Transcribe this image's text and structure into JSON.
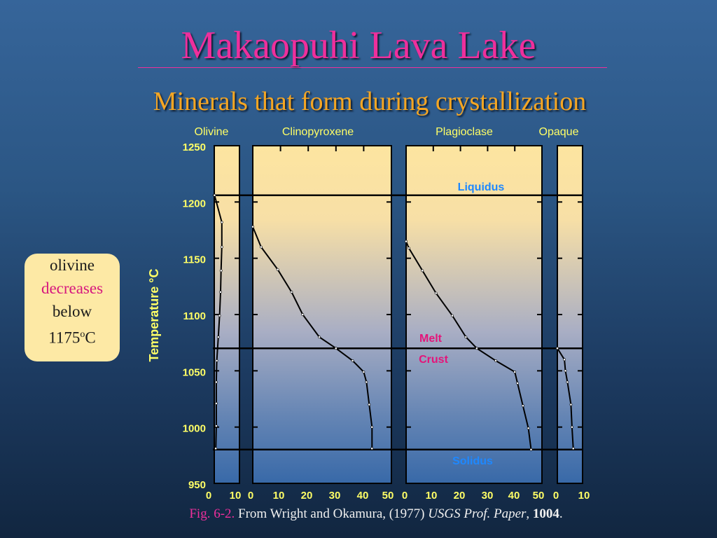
{
  "slide": {
    "title": "Makaopuhi Lava Lake",
    "subtitle": "Minerals that form during crystallization",
    "callout": {
      "line1": "olivine",
      "line2": "decreases",
      "line3": "below",
      "line4a": "1175",
      "line4b": "o",
      "line4c": "C"
    },
    "caption": {
      "fig": "Fig. 6-2.",
      "text": " From Wright and Okamura, (1977) ",
      "journal": "USGS Prof. Paper",
      "sep": ", ",
      "volume": "1004",
      "end": "."
    }
  },
  "colors": {
    "title": "#ee2f9c",
    "subtitle": "#f5a623",
    "panel_top": "#fde5a0",
    "panel_bottom": "#3869a8",
    "label_yellow": "#ffff66",
    "liquidus": "#1e88ff",
    "melt_crust": "#e4147a"
  },
  "chart_data": {
    "type": "line",
    "ylabel": "Temperature °C",
    "ylim": [
      950,
      1250
    ],
    "yticks": [
      1250,
      1200,
      1150,
      1100,
      1050,
      1000,
      950
    ],
    "horizontal_lines": [
      {
        "label": "Liquidus",
        "temp": 1206
      },
      {
        "label": "Melt Crust",
        "label1": "Melt",
        "label2": "Crust",
        "temp": 1070
      },
      {
        "label": "Solidus",
        "temp": 980
      }
    ],
    "panels": [
      {
        "name": "Olivine",
        "xlim": [
          0,
          10
        ],
        "xticks": [
          "0",
          "10"
        ],
        "points": [
          [
            0.1,
            1206
          ],
          [
            3.0,
            1182
          ],
          [
            3.0,
            1160
          ],
          [
            2.7,
            1139
          ],
          [
            2.5,
            1120
          ],
          [
            2.1,
            1099
          ],
          [
            1.6,
            1080
          ],
          [
            1.0,
            1059
          ],
          [
            0.8,
            1040
          ],
          [
            0.8,
            1021
          ],
          [
            0.8,
            1001
          ],
          [
            0.6,
            981
          ]
        ]
      },
      {
        "name": "Clinopyroxene",
        "xlim": [
          0,
          50
        ],
        "xticks": [
          "0",
          "10",
          "20",
          "30",
          "40",
          "50"
        ],
        "points": [
          [
            0,
            1178
          ],
          [
            3,
            1160
          ],
          [
            9,
            1140
          ],
          [
            14,
            1120
          ],
          [
            18,
            1100
          ],
          [
            24,
            1080
          ],
          [
            30,
            1070
          ],
          [
            36,
            1059
          ],
          [
            40,
            1049
          ],
          [
            41,
            1040
          ],
          [
            42,
            1020
          ],
          [
            43,
            1000
          ],
          [
            43,
            981
          ]
        ]
      },
      {
        "name": "Plagioclase",
        "xlim": [
          0,
          50
        ],
        "xticks": [
          "0",
          "10",
          "20",
          "30",
          "40",
          "50"
        ],
        "points": [
          [
            0,
            1165
          ],
          [
            1,
            1159
          ],
          [
            6,
            1139
          ],
          [
            11,
            1119
          ],
          [
            17,
            1099
          ],
          [
            22,
            1080
          ],
          [
            26,
            1070
          ],
          [
            33,
            1059
          ],
          [
            40,
            1049
          ],
          [
            41,
            1039
          ],
          [
            43,
            1019
          ],
          [
            45,
            999
          ],
          [
            46,
            980
          ]
        ]
      },
      {
        "name": "Opaque",
        "xlim": [
          0,
          10
        ],
        "xticks": [
          "0",
          "10"
        ],
        "points": [
          [
            0,
            1070
          ],
          [
            2.8,
            1060
          ],
          [
            3.2,
            1050
          ],
          [
            4.0,
            1040
          ],
          [
            5.4,
            1020
          ],
          [
            5.8,
            1000
          ],
          [
            6.3,
            981
          ]
        ]
      }
    ]
  }
}
